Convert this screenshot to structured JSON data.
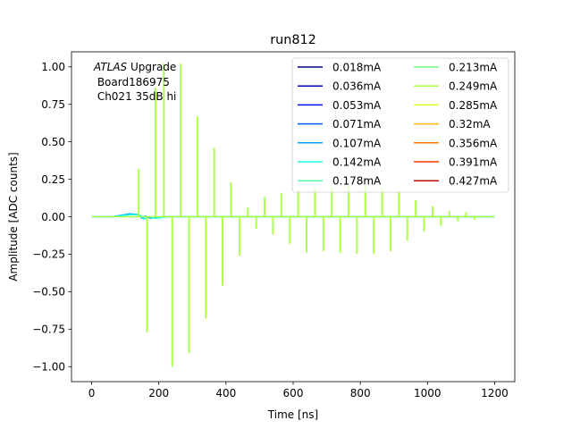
{
  "chart_data": {
    "type": "line",
    "title": "run812",
    "xlabel": "Time [ns]",
    "ylabel": "Amplitude [ADC counts]",
    "xlim": [
      -60,
      1260
    ],
    "ylim": [
      -1.1,
      1.1
    ],
    "xticks": [
      0,
      200,
      400,
      600,
      800,
      1000,
      1200
    ],
    "xtick_labels": [
      "0",
      "200",
      "400",
      "600",
      "800",
      "1000",
      "1200"
    ],
    "yticks": [
      -1.0,
      -0.75,
      -0.5,
      -0.25,
      0.0,
      0.25,
      0.5,
      0.75,
      1.0
    ],
    "ytick_labels": [
      "−1.00",
      "−0.75",
      "−0.50",
      "−0.25",
      "0.00",
      "0.25",
      "0.50",
      "0.75",
      "1.00"
    ],
    "grid": false,
    "legend_position": "top-right",
    "legend_columns": 2,
    "annotation": {
      "italic_part": "ATLAS",
      "rest": " Upgrade",
      "line2": " Board186975",
      "line3": " Ch021 35dB hi"
    },
    "series": [
      {
        "name": "0.018mA",
        "color": "#000080"
      },
      {
        "name": "0.036mA",
        "color": "#0000c4"
      },
      {
        "name": "0.053mA",
        "color": "#0010ff"
      },
      {
        "name": "0.071mA",
        "color": "#0058ff"
      },
      {
        "name": "0.107mA",
        "color": "#00a4ff"
      },
      {
        "name": "0.142mA",
        "color": "#16ffe1"
      },
      {
        "name": "0.178mA",
        "color": "#4affad"
      },
      {
        "name": "0.213mA",
        "color": "#7dff7a"
      },
      {
        "name": "0.249mA",
        "color": "#adff4a"
      },
      {
        "name": "0.285mA",
        "color": "#e1ff16"
      },
      {
        "name": "0.32mA",
        "color": "#ffb900"
      },
      {
        "name": "0.356mA",
        "color": "#ff7a00"
      },
      {
        "name": "0.391mA",
        "color": "#ff3800"
      },
      {
        "name": "0.427mA",
        "color": "#c40000"
      }
    ],
    "spikes": {
      "series": "0.249mA",
      "x": [
        140,
        165,
        190,
        215,
        240,
        265,
        290,
        315,
        340,
        365,
        390,
        415,
        440,
        465,
        490,
        515,
        540,
        565,
        590,
        615,
        640,
        665,
        690,
        715,
        740,
        765,
        790,
        815,
        840,
        865,
        890,
        915,
        940,
        965,
        990,
        1015,
        1040,
        1065,
        1090,
        1115,
        1140
      ],
      "y": [
        0.32,
        -0.77,
        0.86,
        1.02,
        -1.0,
        1.02,
        -0.91,
        0.67,
        -0.68,
        0.46,
        -0.46,
        0.23,
        -0.26,
        0.06,
        -0.08,
        0.13,
        -0.12,
        0.16,
        -0.18,
        0.18,
        -0.24,
        0.2,
        -0.23,
        0.2,
        -0.24,
        0.21,
        -0.25,
        0.21,
        -0.25,
        0.2,
        -0.23,
        0.17,
        -0.16,
        0.11,
        -0.1,
        0.07,
        -0.06,
        0.04,
        -0.03,
        0.03,
        -0.02
      ]
    },
    "baseline_bumps": [
      {
        "series": "0.107mA",
        "x": [
          0,
          60,
          90,
          115,
          135,
          150,
          160,
          175,
          200,
          260,
          1200
        ],
        "y": [
          0,
          0,
          0.01,
          0.02,
          0.015,
          -0.01,
          0.005,
          -0.01,
          0,
          0,
          0
        ]
      },
      {
        "series": "0.142mA",
        "x": [
          0,
          70,
          100,
          125,
          145,
          155,
          170,
          190,
          230,
          1200
        ],
        "y": [
          0,
          0,
          0.01,
          0.015,
          0.01,
          -0.015,
          0.0,
          -0.01,
          0,
          0
        ]
      },
      {
        "series": "0.249mA",
        "x": [
          0,
          1200
        ],
        "y": [
          0,
          0
        ]
      }
    ]
  }
}
